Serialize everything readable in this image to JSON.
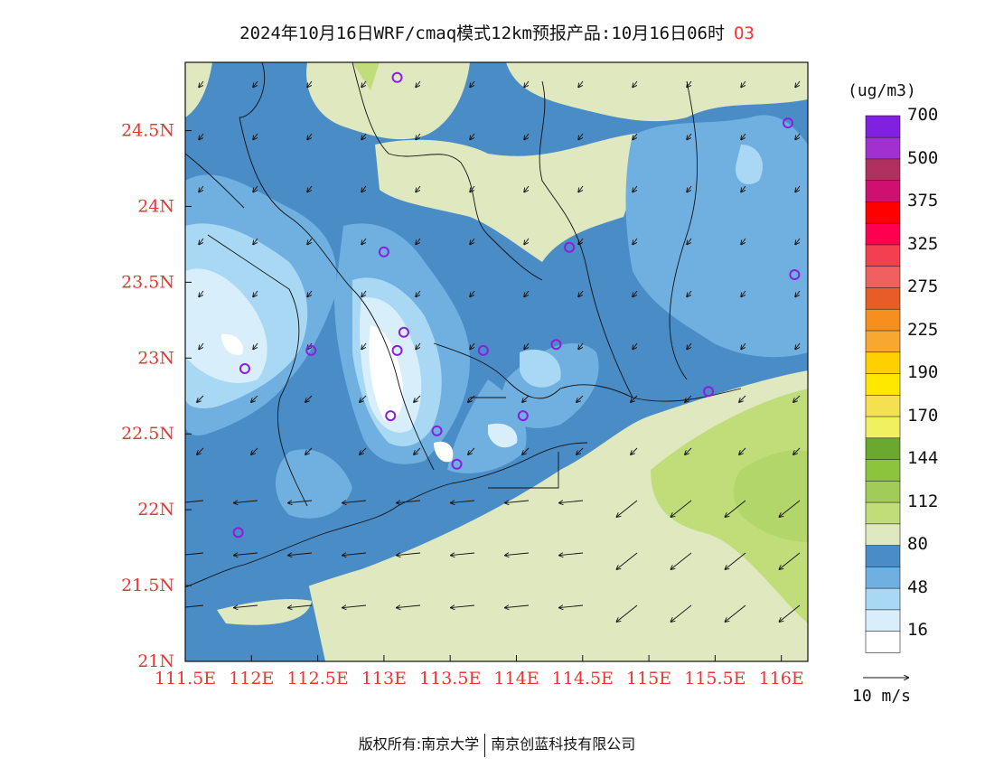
{
  "title": {
    "main": "2024年10月16日WRF/cmaq模式12km预报产品:10月16日06时",
    "species": "O3"
  },
  "footer": {
    "left": "版权所有:南京大学",
    "right": "南京创蓝科技有限公司"
  },
  "colorbar": {
    "unit": "(ug/m3)",
    "labels": [
      "16",
      "48",
      "80",
      "112",
      "144",
      "170",
      "190",
      "225",
      "275",
      "325",
      "375",
      "500",
      "700"
    ],
    "colors": [
      "#ffffff",
      "#d8eefa",
      "#a8d8f4",
      "#6fb0e0",
      "#4a8cc6",
      "#dfe8bf",
      "#c0dd7a",
      "#a2cc5a",
      "#8cc43e",
      "#6aa830",
      "#f0f060",
      "#f5e050",
      "#ffe800",
      "#ffd000",
      "#f6a830",
      "#f5901e",
      "#e85c28",
      "#f06060",
      "#f33f50",
      "#ff0050",
      "#ff0000",
      "#d01070",
      "#b03060",
      "#a030d0",
      "#8020e0"
    ]
  },
  "wind_legend": {
    "label": "10 m/s"
  },
  "axes": {
    "x_ticks": [
      "111.5E",
      "112E",
      "112.5E",
      "113E",
      "113.5E",
      "114E",
      "114.5E",
      "115E",
      "115.5E",
      "116E"
    ],
    "y_ticks": [
      "21N",
      "21.5N",
      "22N",
      "22.5N",
      "23N",
      "23.5N",
      "24N",
      "24.5N"
    ],
    "lon_range": [
      111.5,
      116.2
    ],
    "lat_range": [
      21,
      24.95
    ]
  },
  "stations": [
    {
      "lon": 113.1,
      "lat": 24.85
    },
    {
      "lon": 116.05,
      "lat": 24.55
    },
    {
      "lon": 113.0,
      "lat": 23.7
    },
    {
      "lon": 114.4,
      "lat": 23.73
    },
    {
      "lon": 116.1,
      "lat": 23.55
    },
    {
      "lon": 112.45,
      "lat": 23.05
    },
    {
      "lon": 111.95,
      "lat": 22.93
    },
    {
      "lon": 113.15,
      "lat": 23.17
    },
    {
      "lon": 113.1,
      "lat": 23.05
    },
    {
      "lon": 113.75,
      "lat": 23.05
    },
    {
      "lon": 114.3,
      "lat": 23.09
    },
    {
      "lon": 115.45,
      "lat": 22.78
    },
    {
      "lon": 113.05,
      "lat": 22.62
    },
    {
      "lon": 113.4,
      "lat": 22.52
    },
    {
      "lon": 114.05,
      "lat": 22.62
    },
    {
      "lon": 113.55,
      "lat": 22.3
    },
    {
      "lon": 111.9,
      "lat": 21.85
    }
  ]
}
